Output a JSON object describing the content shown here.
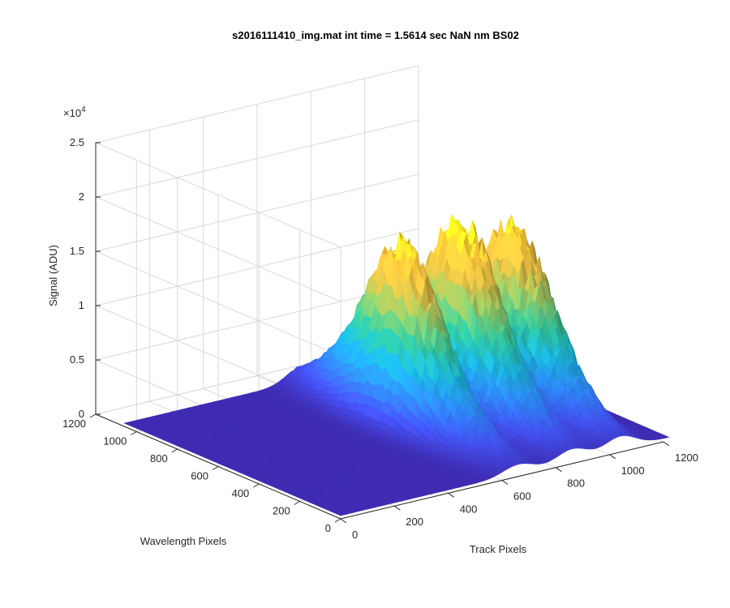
{
  "chart_data": {
    "type": "surface",
    "title": "s2016111410_img.mat int time = 1.5614 sec  NaN nm BS02",
    "xlabel": "Track Pixels",
    "ylabel": "Wavelength Pixels",
    "zlabel": "Signal (ADU)",
    "zscale_label": "×10",
    "zscale_exp": "4",
    "xlim": [
      0,
      1200
    ],
    "ylim": [
      0,
      1200
    ],
    "zlim": [
      0,
      25000
    ],
    "xticks": [
      "0",
      "200",
      "400",
      "600",
      "800",
      "1000",
      "1200"
    ],
    "yticks": [
      "0",
      "200",
      "400",
      "600",
      "800",
      "1000",
      "1200"
    ],
    "zticks": [
      "0",
      "0.5",
      "1",
      "1.5",
      "2",
      "2.5"
    ],
    "grid": true,
    "colormap": [
      "#3e26a8",
      "#4252f0",
      "#2d8af6",
      "#1ab2d8",
      "#2fc098",
      "#8bc264",
      "#dab741",
      "#fdc83a",
      "#f9fb15"
    ],
    "series": [
      {
        "track_center": 660,
        "track_width": 55,
        "wavelength_center": 560,
        "wavelength_width": 230,
        "peak": 16500
      },
      {
        "track_center": 860,
        "track_width": 55,
        "wavelength_center": 540,
        "wavelength_width": 230,
        "peak": 17500
      },
      {
        "track_center": 1040,
        "track_width": 55,
        "wavelength_center": 520,
        "wavelength_width": 230,
        "peak": 16200
      }
    ],
    "baseline": 300,
    "extent": {
      "track": [
        0,
        1220
      ],
      "wavelength": [
        0,
        1060
      ]
    }
  }
}
